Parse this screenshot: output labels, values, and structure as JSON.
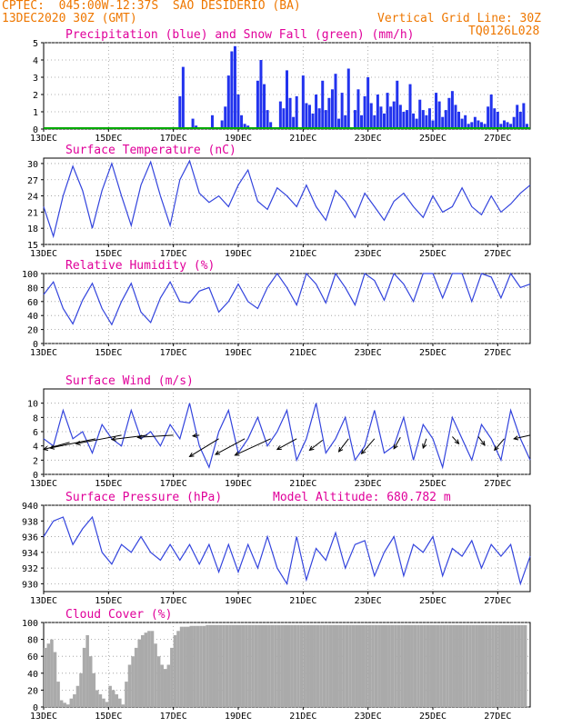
{
  "header": {
    "line1": "CPTEC:  045:00W-12:37S  SAO DESIDERIO (BA)",
    "line2": "13DEC2020 30Z (GMT)",
    "grid_note": "Vertical Grid Line: 30Z",
    "code": "TQ0126L028"
  },
  "x_labels": [
    "13DEC",
    "15DEC",
    "17DEC",
    "19DEC",
    "21DEC",
    "23DEC",
    "25DEC",
    "27DEC"
  ],
  "colors": {
    "header": "#ee7700",
    "title": "#e0009a",
    "line": "#3344dd",
    "bar": "#2233ee",
    "snow": "#00aa00",
    "cloud": "#aaaaaa"
  },
  "chart_data": [
    {
      "type": "bar",
      "title": "Precipitation (blue) and Snow Fall (green) (mm/h)",
      "ylim": [
        0,
        5
      ],
      "yticks": [
        0,
        1,
        2,
        3,
        4,
        5
      ],
      "series": [
        {
          "name": "Precipitation",
          "x": [
            4.2,
            4.3,
            4.6,
            4.7,
            5.2,
            5.5,
            5.6,
            5.7,
            5.8,
            5.9,
            6.0,
            6.1,
            6.2,
            6.3,
            6.6,
            6.7,
            6.8,
            6.9,
            7.0,
            7.3,
            7.4,
            7.5,
            7.6,
            7.7,
            7.8,
            8.0,
            8.1,
            8.2,
            8.3,
            8.4,
            8.5,
            8.6,
            8.7,
            8.8,
            8.9,
            9.0,
            9.1,
            9.2,
            9.3,
            9.4,
            9.6,
            9.7,
            9.8,
            9.9,
            10.0,
            10.1,
            10.2,
            10.3,
            10.4,
            10.5,
            10.6,
            10.7,
            10.8,
            10.9,
            11.0,
            11.1,
            11.2,
            11.3,
            11.4,
            11.5,
            11.6,
            11.7,
            11.8,
            11.9,
            12.0,
            12.1,
            12.2,
            12.3,
            12.4,
            12.5,
            12.6,
            12.7,
            12.8,
            12.9,
            13.0,
            13.1,
            13.2,
            13.3,
            13.4,
            13.5,
            13.6,
            13.7,
            13.8,
            13.9,
            14.0,
            14.1,
            14.2,
            14.3,
            14.4,
            14.5,
            14.6,
            14.7,
            14.8,
            14.9
          ],
          "values": [
            1.9,
            3.6,
            0.6,
            0.2,
            0.8,
            0.5,
            1.3,
            3.1,
            4.5,
            4.8,
            2.0,
            0.8,
            0.3,
            0.2,
            2.8,
            4.0,
            2.6,
            1.1,
            0.4,
            1.6,
            1.2,
            3.4,
            1.8,
            0.7,
            1.9,
            3.1,
            1.5,
            1.4,
            0.9,
            2.0,
            1.2,
            2.8,
            1.1,
            1.8,
            2.3,
            3.2,
            0.6,
            2.1,
            0.8,
            3.5,
            1.1,
            2.3,
            0.8,
            1.9,
            3.0,
            1.5,
            0.8,
            2.0,
            1.3,
            0.9,
            2.1,
            1.3,
            1.6,
            2.8,
            1.4,
            1.0,
            1.1,
            2.6,
            0.9,
            0.6,
            1.7,
            1.1,
            0.8,
            1.2,
            0.5,
            2.1,
            1.6,
            0.7,
            1.1,
            1.8,
            2.2,
            1.4,
            1.0,
            0.6,
            0.8,
            0.3,
            0.4,
            0.7,
            0.5,
            0.4,
            0.3,
            1.3,
            2.0,
            1.2,
            1.0,
            0.3,
            0.5,
            0.4,
            0.3,
            0.7,
            1.4,
            1.0,
            1.5,
            0.3
          ]
        },
        {
          "name": "Snow Fall",
          "x": [
            0,
            15
          ],
          "values": [
            0,
            0
          ]
        }
      ]
    },
    {
      "type": "line",
      "title": "Surface Temperature (nC)",
      "ylim": [
        15,
        31
      ],
      "yticks": [
        15,
        18,
        21,
        24,
        27,
        30
      ],
      "x": [
        0,
        0.3,
        0.6,
        0.9,
        1.2,
        1.5,
        1.8,
        2.1,
        2.4,
        2.7,
        3.0,
        3.3,
        3.6,
        3.9,
        4.2,
        4.5,
        4.8,
        5.1,
        5.4,
        5.7,
        6.0,
        6.3,
        6.6,
        6.9,
        7.2,
        7.5,
        7.8,
        8.1,
        8.4,
        8.7,
        9.0,
        9.3,
        9.6,
        9.9,
        10.2,
        10.5,
        10.8,
        11.1,
        11.4,
        11.7,
        12.0,
        12.3,
        12.6,
        12.9,
        13.2,
        13.5,
        13.8,
        14.1,
        14.4,
        14.7,
        15.0
      ],
      "values": [
        22,
        16.5,
        24,
        29.5,
        25,
        18,
        25,
        30,
        24,
        18.5,
        26,
        30.3,
        24,
        18.5,
        27,
        30.5,
        24.5,
        22.8,
        24,
        22,
        26,
        28.8,
        23,
        21.5,
        25.5,
        24,
        22,
        26,
        22,
        19.5,
        25,
        23,
        20,
        24.5,
        22,
        19.5,
        23,
        24.5,
        22,
        20,
        24,
        21,
        22,
        25.5,
        22,
        20.5,
        24,
        21,
        22.5,
        24.5,
        26
      ]
    },
    {
      "type": "line",
      "title": "Relative Humidity (%)",
      "ylim": [
        0,
        100
      ],
      "yticks": [
        0,
        20,
        40,
        60,
        80,
        100
      ],
      "x": [
        0,
        0.3,
        0.6,
        0.9,
        1.2,
        1.5,
        1.8,
        2.1,
        2.4,
        2.7,
        3.0,
        3.3,
        3.6,
        3.9,
        4.2,
        4.5,
        4.8,
        5.1,
        5.4,
        5.7,
        6.0,
        6.3,
        6.6,
        6.9,
        7.2,
        7.5,
        7.8,
        8.1,
        8.4,
        8.7,
        9.0,
        9.3,
        9.6,
        9.9,
        10.2,
        10.5,
        10.8,
        11.1,
        11.4,
        11.7,
        12.0,
        12.3,
        12.6,
        12.9,
        13.2,
        13.5,
        13.8,
        14.1,
        14.4,
        14.7,
        15.0
      ],
      "values": [
        70,
        88,
        50,
        28,
        62,
        86,
        50,
        27,
        60,
        86,
        45,
        30,
        65,
        88,
        60,
        58,
        75,
        80,
        45,
        60,
        85,
        60,
        50,
        80,
        100,
        80,
        55,
        100,
        85,
        58,
        100,
        80,
        55,
        100,
        90,
        62,
        100,
        85,
        60,
        100,
        100,
        65,
        100,
        100,
        60,
        100,
        95,
        65,
        100,
        80,
        85
      ]
    },
    {
      "type": "line",
      "title": "Surface Wind (m/s)",
      "ylim": [
        0,
        12
      ],
      "yticks": [
        0,
        2,
        4,
        6,
        8,
        10
      ],
      "x": [
        0,
        0.3,
        0.6,
        0.9,
        1.2,
        1.5,
        1.8,
        2.1,
        2.4,
        2.7,
        3.0,
        3.3,
        3.6,
        3.9,
        4.2,
        4.5,
        4.8,
        5.1,
        5.4,
        5.7,
        6.0,
        6.3,
        6.6,
        6.9,
        7.2,
        7.5,
        7.8,
        8.1,
        8.4,
        8.7,
        9.0,
        9.3,
        9.6,
        9.9,
        10.2,
        10.5,
        10.8,
        11.1,
        11.4,
        11.7,
        12.0,
        12.3,
        12.6,
        12.9,
        13.2,
        13.5,
        13.8,
        14.1,
        14.4,
        14.7,
        15.0
      ],
      "values": [
        5,
        4,
        9,
        5,
        6,
        3,
        7,
        5,
        4,
        9,
        5,
        6,
        4,
        7,
        5,
        10,
        4,
        1,
        6,
        9,
        3,
        5,
        8,
        4,
        6,
        9,
        2,
        5,
        10,
        3,
        5,
        8,
        2,
        4,
        9,
        3,
        4,
        8,
        2,
        7,
        5,
        1,
        8,
        5,
        2,
        7,
        5,
        2,
        9,
        5,
        2
      ],
      "arrows": [
        {
          "x": 0.8,
          "y": 4.5,
          "dx": -0.8,
          "dy": -1.0
        },
        {
          "x": 1.6,
          "y": 5.0,
          "dx": -1.4,
          "dy": -1.3
        },
        {
          "x": 2.4,
          "y": 5.5,
          "dx": -1.4,
          "dy": -1.2
        },
        {
          "x": 3.2,
          "y": 5.5,
          "dx": -1.1,
          "dy": -0.6
        },
        {
          "x": 4.0,
          "y": 5.5,
          "dx": -1.1,
          "dy": -0.3
        },
        {
          "x": 4.8,
          "y": 5.5,
          "dx": -0.2,
          "dy": -0.1
        },
        {
          "x": 5.4,
          "y": 5.0,
          "dx": -0.9,
          "dy": -2.5
        },
        {
          "x": 6.2,
          "y": 5.0,
          "dx": -0.9,
          "dy": -2.2
        },
        {
          "x": 7.0,
          "y": 5.0,
          "dx": -1.1,
          "dy": -2.3
        },
        {
          "x": 7.8,
          "y": 5.0,
          "dx": -0.6,
          "dy": -1.5
        },
        {
          "x": 8.6,
          "y": 4.8,
          "dx": -0.4,
          "dy": -1.4
        },
        {
          "x": 9.4,
          "y": 5.0,
          "dx": -0.3,
          "dy": -1.8
        },
        {
          "x": 10.2,
          "y": 5.0,
          "dx": -0.4,
          "dy": -2.1
        },
        {
          "x": 11.0,
          "y": 5.2,
          "dx": -0.2,
          "dy": -1.6
        },
        {
          "x": 11.8,
          "y": 5.0,
          "dx": -0.1,
          "dy": -1.3
        },
        {
          "x": 12.6,
          "y": 5.3,
          "dx": 0.2,
          "dy": -1.0
        },
        {
          "x": 13.4,
          "y": 5.3,
          "dx": 0.2,
          "dy": -1.2
        },
        {
          "x": 14.2,
          "y": 5.0,
          "dx": -0.3,
          "dy": -1.6
        },
        {
          "x": 15.0,
          "y": 5.5,
          "dx": -0.5,
          "dy": -0.5
        }
      ]
    },
    {
      "type": "line",
      "title": "Surface Pressure (hPa)",
      "subtitle": "Model Altitude: 680.782 m",
      "ylim": [
        929,
        940
      ],
      "yticks": [
        930,
        932,
        934,
        936,
        938,
        940
      ],
      "x": [
        0,
        0.3,
        0.6,
        0.9,
        1.2,
        1.5,
        1.8,
        2.1,
        2.4,
        2.7,
        3.0,
        3.3,
        3.6,
        3.9,
        4.2,
        4.5,
        4.8,
        5.1,
        5.4,
        5.7,
        6.0,
        6.3,
        6.6,
        6.9,
        7.2,
        7.5,
        7.8,
        8.1,
        8.4,
        8.7,
        9.0,
        9.3,
        9.6,
        9.9,
        10.2,
        10.5,
        10.8,
        11.1,
        11.4,
        11.7,
        12.0,
        12.3,
        12.6,
        12.9,
        13.2,
        13.5,
        13.8,
        14.1,
        14.4,
        14.7,
        15.0
      ],
      "values": [
        936,
        938,
        938.5,
        935,
        937,
        938.5,
        934,
        932.5,
        935,
        934,
        936,
        934,
        933,
        935,
        933,
        935,
        932.5,
        935,
        931.5,
        935,
        931.5,
        935,
        932,
        936,
        932,
        930,
        936,
        930.5,
        934.5,
        933,
        936.5,
        932,
        935,
        935.5,
        931,
        934,
        936,
        931,
        935,
        934,
        936,
        931,
        934.5,
        933.5,
        935.5,
        932,
        935,
        933.5,
        935,
        930,
        933.5
      ]
    },
    {
      "type": "bar",
      "title": "Cloud Cover (%)",
      "ylim": [
        0,
        100
      ],
      "yticks": [
        0,
        20,
        40,
        60,
        80,
        100
      ],
      "x": [
        0.1,
        0.2,
        0.3,
        0.4,
        0.5,
        0.6,
        0.7,
        0.8,
        0.9,
        1.0,
        1.1,
        1.2,
        1.3,
        1.4,
        1.5,
        1.6,
        1.7,
        1.8,
        1.9,
        2.0,
        2.1,
        2.2,
        2.3,
        2.4,
        2.5,
        2.6,
        2.7,
        2.8,
        2.9,
        3.0,
        3.1,
        3.2,
        3.3,
        3.4,
        3.5,
        3.6,
        3.7,
        3.8,
        3.9,
        4.0,
        4.1,
        4.2,
        4.3,
        4.4,
        4.5,
        4.6,
        4.7,
        4.8,
        4.9,
        5.0,
        5.1,
        5.2,
        5.3,
        5.4,
        5.5,
        5.6,
        5.7,
        5.8,
        5.9,
        6.0,
        6.1,
        6.2,
        6.3,
        6.4,
        6.5,
        6.6,
        6.7,
        6.8,
        6.9,
        7.0,
        7.1,
        7.2,
        7.3,
        7.4,
        7.5,
        7.6,
        7.7,
        7.8,
        7.9,
        8.0,
        8.1,
        8.2,
        8.3,
        8.4,
        8.5,
        8.6,
        8.7,
        8.8,
        8.9,
        9.0,
        9.1,
        9.2,
        9.3,
        9.4,
        9.5,
        9.6,
        9.7,
        9.8,
        9.9,
        10.0,
        10.1,
        10.2,
        10.3,
        10.4,
        10.5,
        10.6,
        10.7,
        10.8,
        10.9,
        11.0,
        11.1,
        11.2,
        11.3,
        11.4,
        11.5,
        11.6,
        11.7,
        11.8,
        11.9,
        12.0,
        12.1,
        12.2,
        12.3,
        12.4,
        12.5,
        12.6,
        12.7,
        12.8,
        12.9,
        13.0,
        13.1,
        13.2,
        13.3,
        13.4,
        13.5,
        13.6,
        13.7,
        13.8,
        13.9,
        14.0,
        14.1,
        14.2,
        14.3,
        14.4,
        14.5,
        14.6,
        14.7,
        14.8,
        14.9
      ],
      "values": [
        70,
        75,
        80,
        65,
        30,
        8,
        5,
        3,
        10,
        15,
        25,
        40,
        70,
        85,
        60,
        40,
        20,
        15,
        10,
        6,
        25,
        20,
        15,
        10,
        3,
        30,
        50,
        60,
        70,
        80,
        85,
        88,
        90,
        90,
        75,
        60,
        50,
        45,
        50,
        70,
        85,
        90,
        95,
        95,
        95,
        96,
        96,
        96,
        96,
        96,
        97,
        97,
        97,
        97,
        97,
        97,
        97,
        97,
        97,
        97,
        97,
        97,
        97,
        97,
        97,
        97,
        97,
        97,
        97,
        97,
        97,
        97,
        97,
        97,
        97,
        97,
        97,
        97,
        97,
        97,
        97,
        97,
        97,
        97,
        97,
        97,
        97,
        97,
        97,
        97,
        97,
        97,
        97,
        97,
        97,
        97,
        97,
        97,
        97,
        97,
        97,
        97,
        97,
        97,
        97,
        97,
        97,
        97,
        97,
        97,
        97,
        97,
        97,
        97,
        97,
        97,
        97,
        97,
        97,
        97,
        97,
        97,
        97,
        97,
        97,
        97,
        97,
        97,
        97,
        97,
        97,
        97,
        97,
        97,
        97,
        97,
        97,
        97,
        97,
        97,
        97,
        97,
        97,
        97,
        97,
        97,
        97,
        97,
        97
      ]
    }
  ]
}
